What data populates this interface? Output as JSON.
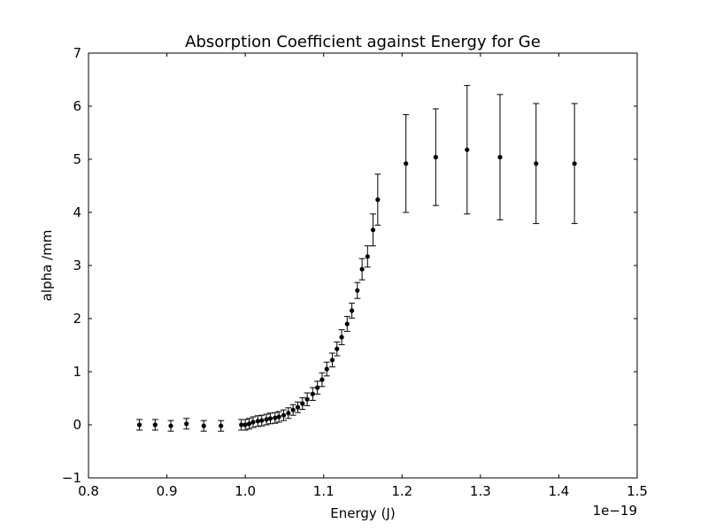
{
  "chart_data": {
    "type": "scatter",
    "title": "Absorption Coefficient against Energy for Ge",
    "xlabel": "Energy (J)",
    "ylabel": "alpha /mm",
    "x_offset_label": "1e−19",
    "xlim": [
      0.8,
      1.5
    ],
    "ylim": [
      -1,
      7
    ],
    "x_ticks": [
      0.8,
      0.9,
      1.0,
      1.1,
      1.2,
      1.3,
      1.4,
      1.5
    ],
    "x_tick_labels": [
      "0.8",
      "0.9",
      "1.0",
      "1.1",
      "1.2",
      "1.3",
      "1.4",
      "1.5"
    ],
    "y_ticks": [
      -1,
      0,
      1,
      2,
      3,
      4,
      5,
      6,
      7
    ],
    "y_tick_labels": [
      "−1",
      "0",
      "1",
      "2",
      "3",
      "4",
      "5",
      "6",
      "7"
    ],
    "grid": false,
    "marker_color": "#000000",
    "series": [
      {
        "x": [
          0.865,
          0.885,
          0.905,
          0.925,
          0.947,
          0.969,
          0.995,
          1.0,
          1.005,
          1.01,
          1.016,
          1.021,
          1.027,
          1.032,
          1.038,
          1.043,
          1.049,
          1.055,
          1.061,
          1.067,
          1.073,
          1.079,
          1.086,
          1.092,
          1.098,
          1.104,
          1.111,
          1.117,
          1.123,
          1.13,
          1.136,
          1.143,
          1.149,
          1.156,
          1.163,
          1.169,
          1.205,
          1.243,
          1.283,
          1.325,
          1.371,
          1.42
        ],
        "y": [
          0.0,
          0.0,
          -0.02,
          0.02,
          -0.02,
          -0.02,
          0.0,
          0.0,
          0.02,
          0.05,
          0.07,
          0.08,
          0.1,
          0.12,
          0.13,
          0.15,
          0.18,
          0.22,
          0.28,
          0.33,
          0.4,
          0.48,
          0.58,
          0.7,
          0.85,
          1.05,
          1.22,
          1.43,
          1.65,
          1.9,
          2.15,
          2.53,
          2.93,
          3.17,
          3.67,
          4.24,
          4.92,
          5.04,
          5.18,
          5.04,
          4.92,
          4.92
        ],
        "err": [
          0.1,
          0.1,
          0.1,
          0.1,
          0.1,
          0.1,
          0.1,
          0.1,
          0.1,
          0.1,
          0.1,
          0.1,
          0.1,
          0.1,
          0.1,
          0.1,
          0.1,
          0.1,
          0.1,
          0.1,
          0.11,
          0.12,
          0.12,
          0.12,
          0.13,
          0.13,
          0.13,
          0.13,
          0.14,
          0.14,
          0.14,
          0.15,
          0.2,
          0.2,
          0.3,
          0.48,
          0.92,
          0.91,
          1.21,
          1.18,
          1.13,
          1.13
        ]
      }
    ]
  }
}
